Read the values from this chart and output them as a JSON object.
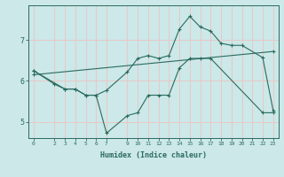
{
  "xlabel": "Humidex (Indice chaleur)",
  "bg_color": "#cce8e8",
  "grid_color_h": "#e8c8c8",
  "grid_color_v": "#e8c8c8",
  "line_color": "#2a6b5e",
  "xlim": [
    -0.5,
    23.5
  ],
  "ylim": [
    4.6,
    7.85
  ],
  "xticks": [
    0,
    2,
    3,
    4,
    5,
    6,
    7,
    9,
    10,
    11,
    12,
    13,
    14,
    15,
    16,
    17,
    18,
    19,
    20,
    21,
    22,
    23
  ],
  "yticks": [
    5,
    6,
    7
  ],
  "line1_x": [
    0,
    2,
    3,
    4,
    5,
    6,
    7,
    9,
    10,
    11,
    12,
    13,
    14,
    15,
    16,
    17,
    18,
    19,
    20,
    22,
    23
  ],
  "line1_y": [
    6.25,
    5.92,
    5.8,
    5.8,
    5.65,
    5.65,
    5.77,
    6.22,
    6.55,
    6.62,
    6.55,
    6.62,
    7.27,
    7.58,
    7.32,
    7.22,
    6.92,
    6.87,
    6.87,
    6.57,
    5.28
  ],
  "line2_x": [
    0,
    3,
    4,
    5,
    6,
    7,
    9,
    10,
    11,
    12,
    13,
    14,
    15,
    16,
    17,
    22,
    23
  ],
  "line2_y": [
    6.25,
    5.8,
    5.8,
    5.65,
    5.65,
    4.72,
    5.15,
    5.22,
    5.65,
    5.65,
    5.65,
    6.32,
    6.55,
    6.55,
    6.55,
    5.22,
    5.22
  ],
  "line3_x": [
    0,
    23
  ],
  "line3_y": [
    6.15,
    6.72
  ]
}
